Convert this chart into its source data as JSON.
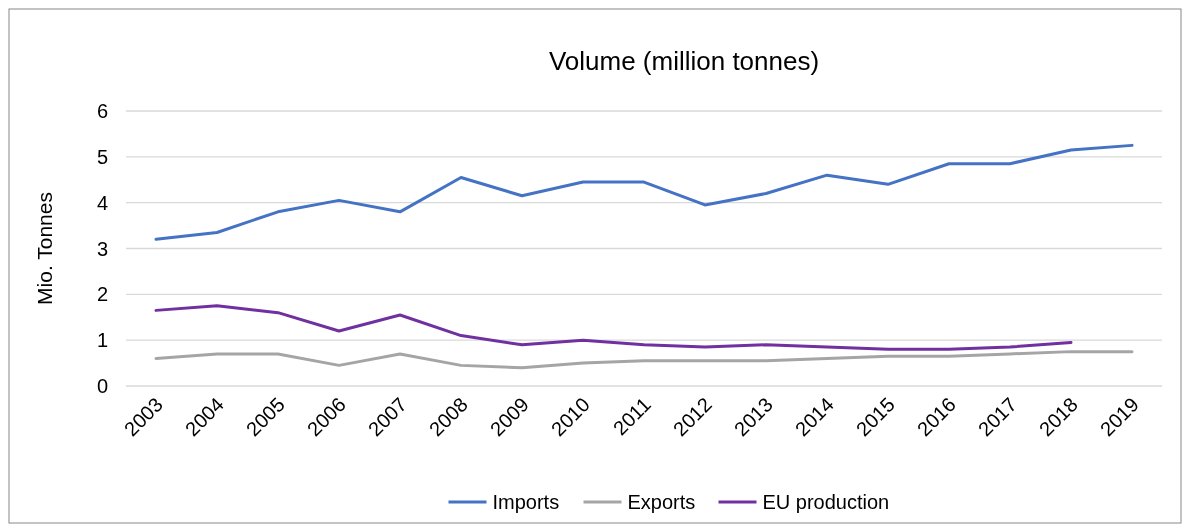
{
  "chart_data": {
    "type": "line",
    "title": "Volume (million tonnes)",
    "ylabel": "Mio. Tonnes",
    "categories": [
      "2003",
      "2004",
      "2005",
      "2006",
      "2007",
      "2008",
      "2009",
      "2010",
      "2011",
      "2012",
      "2013",
      "2014",
      "2015",
      "2016",
      "2017",
      "2018",
      "2019"
    ],
    "series": [
      {
        "name": "Imports",
        "color": "#4472c4",
        "values": [
          3.2,
          3.35,
          3.8,
          4.05,
          3.8,
          4.55,
          4.15,
          4.45,
          4.45,
          3.95,
          4.2,
          4.6,
          4.4,
          4.85,
          4.85,
          5.15,
          5.25
        ]
      },
      {
        "name": "Exports",
        "color": "#a5a5a5",
        "values": [
          0.6,
          0.7,
          0.7,
          0.45,
          0.7,
          0.45,
          0.4,
          0.5,
          0.55,
          0.55,
          0.55,
          0.6,
          0.65,
          0.65,
          0.7,
          0.75,
          0.75
        ]
      },
      {
        "name": "EU production",
        "color": "#7030a0",
        "values": [
          1.65,
          1.75,
          1.6,
          1.2,
          1.55,
          1.1,
          0.9,
          1.0,
          0.9,
          0.85,
          0.9,
          0.85,
          0.8,
          0.8,
          0.85,
          0.95,
          null
        ]
      }
    ],
    "ylim": [
      0,
      6
    ],
    "yticks": [
      0,
      1,
      2,
      3,
      4,
      5,
      6
    ],
    "grid": "y",
    "legend": "bottom",
    "marker": "none",
    "line_style": "solid"
  }
}
